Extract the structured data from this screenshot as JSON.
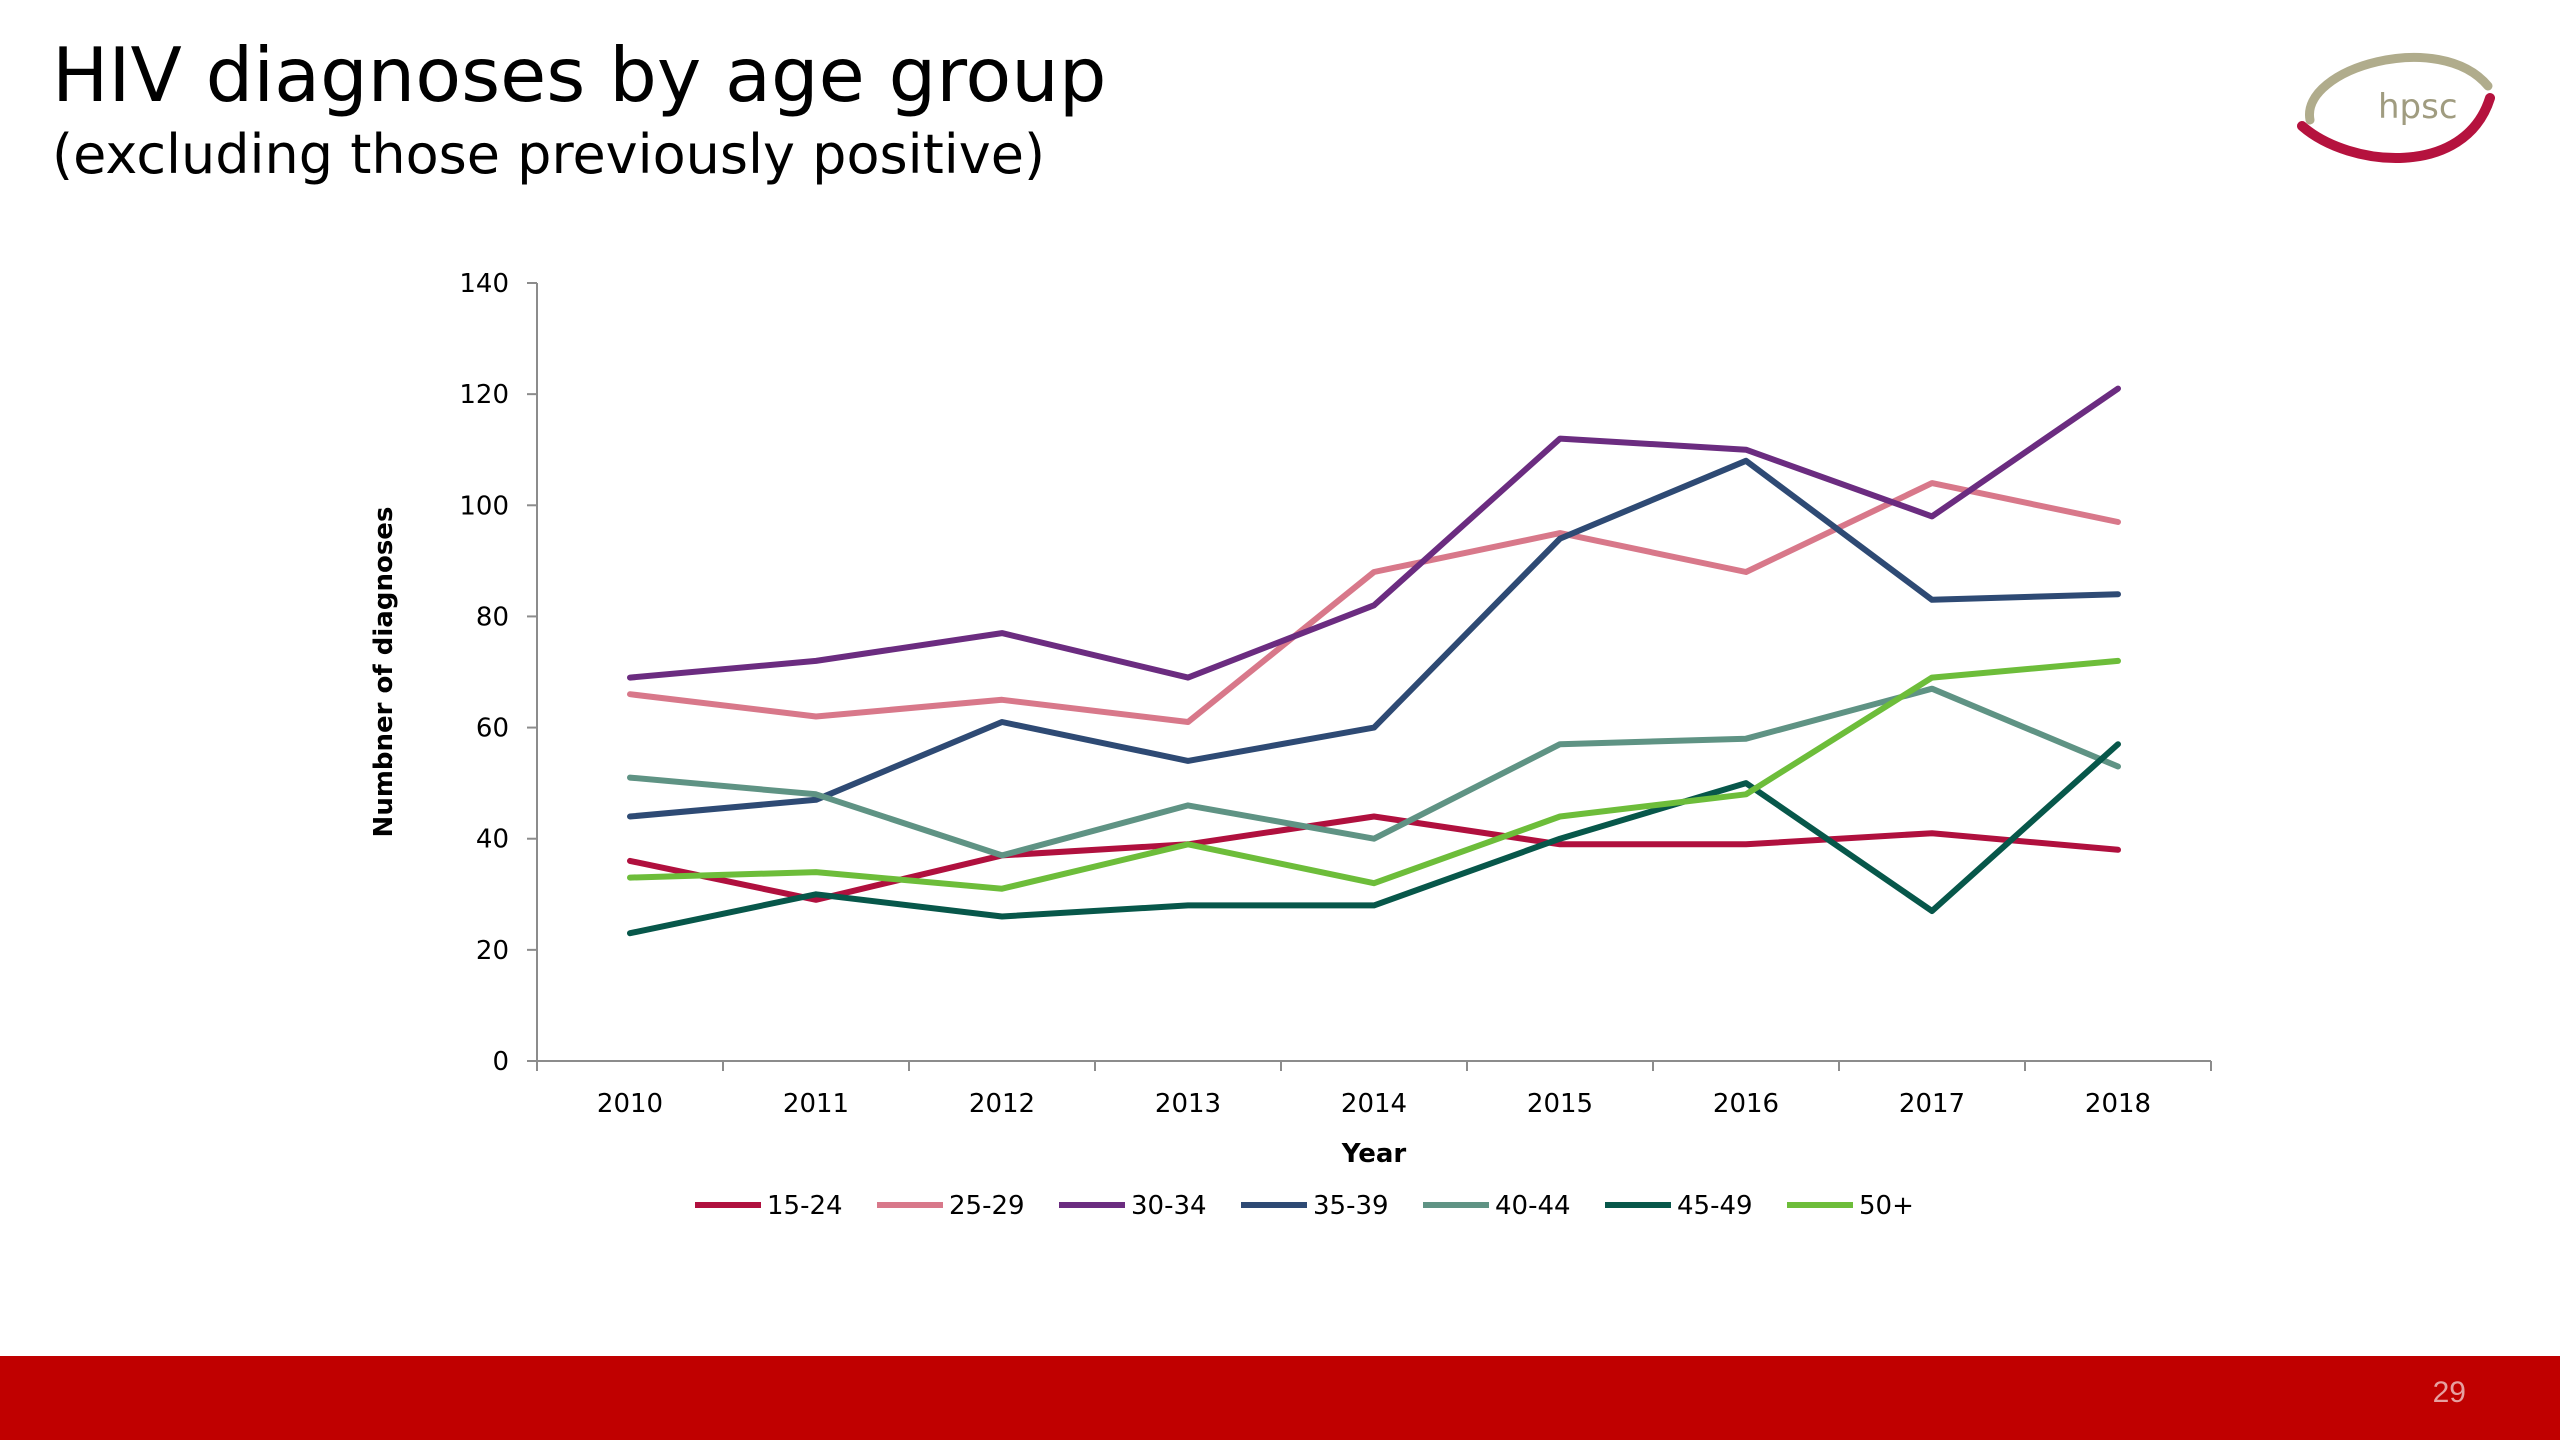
{
  "slide": {
    "title": "HIV diagnoses by age group",
    "subtitle": "(excluding those previously positive)",
    "page_number": "29",
    "footer_color": "#c00000"
  },
  "logo": {
    "text": "hpsc",
    "colors": [
      "#b0ac8c",
      "#b5123e"
    ]
  },
  "chart_data": {
    "type": "line",
    "x": [
      "2010",
      "2011",
      "2012",
      "2013",
      "2014",
      "2015",
      "2016",
      "2017",
      "2018"
    ],
    "xlabel": "Year",
    "ylabel": "Numbner of diagnoses",
    "ylim": [
      0,
      140
    ],
    "yticks": [
      0,
      20,
      40,
      60,
      80,
      100,
      120,
      140
    ],
    "grid": false,
    "legend_position": "bottom",
    "series": [
      {
        "name": "15-24",
        "color": "#b0103e",
        "values": [
          36,
          29,
          37,
          39,
          44,
          39,
          39,
          41,
          38
        ]
      },
      {
        "name": "25-29",
        "color": "#d8788a",
        "values": [
          66,
          62,
          65,
          61,
          88,
          95,
          88,
          104,
          97
        ]
      },
      {
        "name": "30-34",
        "color": "#6b2c80",
        "values": [
          69,
          72,
          77,
          69,
          82,
          112,
          110,
          98,
          121
        ]
      },
      {
        "name": "35-39",
        "color": "#2e4a74",
        "values": [
          44,
          47,
          61,
          54,
          60,
          94,
          108,
          83,
          84
        ]
      },
      {
        "name": "40-44",
        "color": "#5f9384",
        "values": [
          51,
          48,
          37,
          46,
          40,
          57,
          58,
          67,
          53
        ]
      },
      {
        "name": "45-49",
        "color": "#07574a",
        "values": [
          23,
          30,
          26,
          28,
          28,
          40,
          50,
          27,
          57
        ]
      },
      {
        "name": "50+",
        "color": "#6dbd3a",
        "values": [
          33,
          34,
          31,
          39,
          32,
          44,
          48,
          69,
          72
        ]
      }
    ]
  }
}
